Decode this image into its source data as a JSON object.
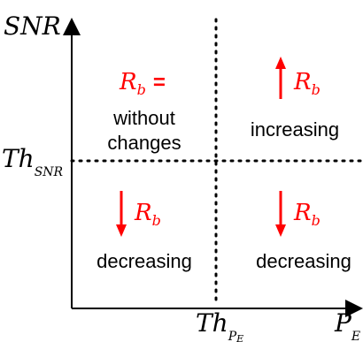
{
  "axes": {
    "y_label": "SNR",
    "x_label_main": "P",
    "x_label_sub": "E",
    "y_threshold_main": "Th",
    "y_threshold_sub": "SNR",
    "x_threshold_main": "Th",
    "x_threshold_sub": "P",
    "x_threshold_subsub": "E"
  },
  "quadrants": {
    "top_left": {
      "symbol": "R",
      "symbol_sub": "b",
      "equals": "=",
      "line1": "without",
      "line2": "changes"
    },
    "top_right": {
      "symbol": "R",
      "symbol_sub": "b",
      "arrow": "up-arrow",
      "text": "increasing"
    },
    "bottom_left": {
      "symbol": "R",
      "symbol_sub": "b",
      "arrow": "down-arrow",
      "text": "decreasing"
    },
    "bottom_right": {
      "symbol": "R",
      "symbol_sub": "b",
      "arrow": "down-arrow",
      "text": "decreasing"
    }
  },
  "colors": {
    "accent": "#ff0000",
    "axis": "#000000"
  }
}
